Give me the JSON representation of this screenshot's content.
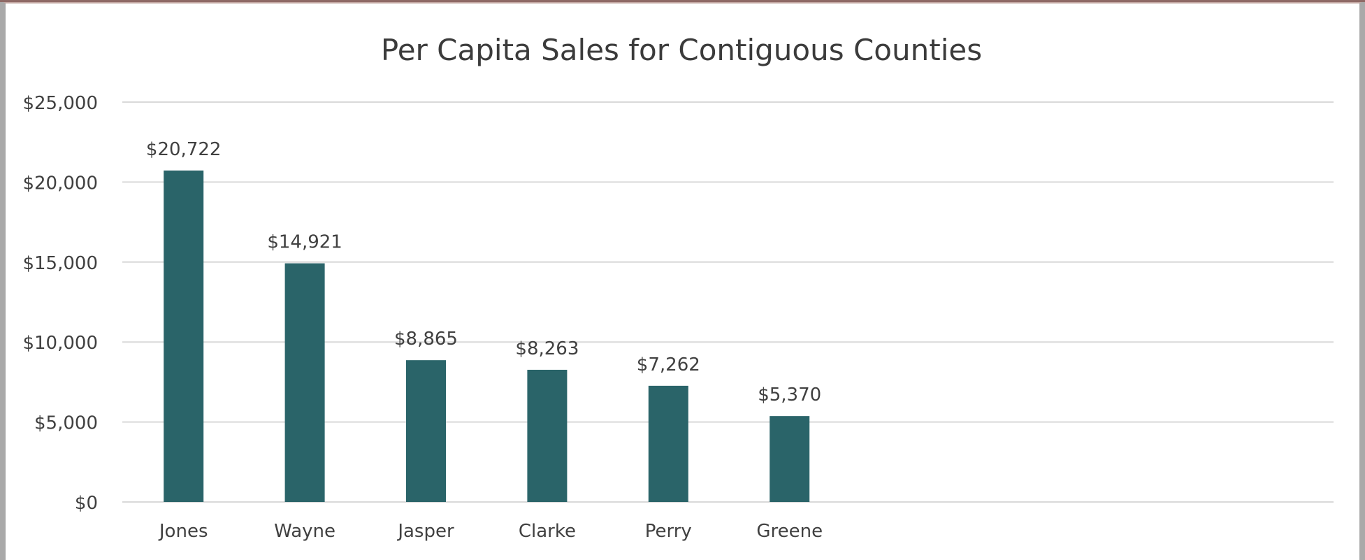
{
  "chart_data": {
    "type": "bar",
    "title": "Per Capita Sales for Contiguous Counties",
    "categories": [
      "Jones",
      "Wayne",
      "Jasper",
      "Clarke",
      "Perry",
      "Greene"
    ],
    "values": [
      20722,
      14921,
      8865,
      8263,
      7262,
      5370
    ],
    "data_labels": [
      "$20,722",
      "$14,921",
      "$8,865",
      "$8,263",
      "$7,262",
      "$5,370"
    ],
    "y_ticks": [
      0,
      5000,
      10000,
      15000,
      20000,
      25000
    ],
    "y_tick_labels": [
      "$0",
      "$5,000",
      "$10,000",
      "$15,000",
      "$20,000",
      "$25,000"
    ],
    "ylim": [
      0,
      25000
    ],
    "xlabel": "",
    "ylabel": "",
    "grid": true,
    "legend": "none",
    "bar_color": "#2a6469",
    "gridline_color": "#d9d9d9"
  }
}
